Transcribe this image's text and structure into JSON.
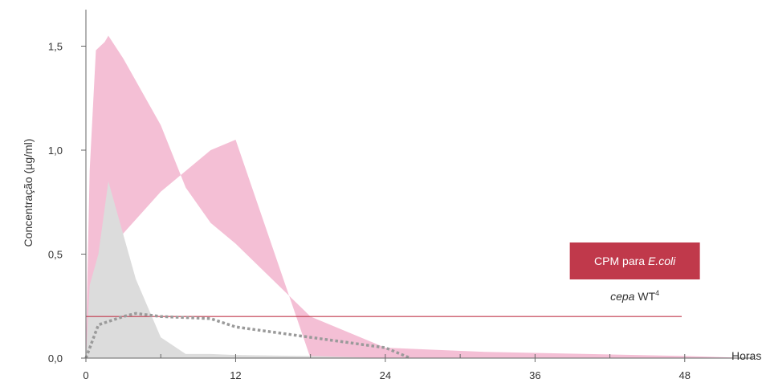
{
  "chart_data": {
    "type": "area",
    "xlabel": "Horas",
    "ylabel": "Concentração (µg/ml)",
    "xlim": [
      0,
      54
    ],
    "ylim": [
      0,
      1.6
    ],
    "x_ticks": [
      0,
      12,
      24,
      36,
      48
    ],
    "x_tick_labels": [
      "0",
      "12",
      "24",
      "36",
      "48"
    ],
    "x_minor_ticks": [
      6,
      18,
      30,
      42
    ],
    "y_ticks": [
      0,
      0.5,
      1.0,
      1.5
    ],
    "y_tick_labels": [
      "0,0",
      "0,5",
      "1,0",
      "1,5"
    ],
    "grid": false,
    "series": [
      {
        "role": "band",
        "color": "#f4bfd5",
        "x": [
          0,
          0.3,
          0.8,
          1.5,
          1.8,
          3,
          6,
          8,
          10,
          12,
          18,
          24,
          32,
          48,
          53.5
        ],
        "y": [
          0.05,
          0.9,
          1.48,
          1.52,
          1.55,
          1.44,
          1.12,
          0.82,
          0.65,
          0.55,
          0.2,
          0.05,
          0.03,
          0.01,
          0
        ],
        "y_lower": [
          0,
          0.25,
          0.3,
          0.45,
          0.48,
          0.6,
          0.8,
          0.9,
          1.0,
          1.05,
          0,
          0,
          0,
          0,
          0
        ]
      },
      {
        "role": "filled",
        "color": "#dcdcdc",
        "x": [
          0,
          0.3,
          1,
          1.8,
          2.5,
          4,
          6,
          8,
          10,
          12,
          18,
          24
        ],
        "y": [
          0,
          0.35,
          0.5,
          0.85,
          0.7,
          0.38,
          0.1,
          0.02,
          0.02,
          0.015,
          0.01,
          0
        ]
      },
      {
        "role": "line",
        "style": "dotted",
        "color": "#9a9a9a",
        "x": [
          0,
          1,
          3,
          4,
          6,
          8,
          10,
          12,
          18,
          24,
          26
        ],
        "y": [
          0,
          0.16,
          0.2,
          0.215,
          0.2,
          0.195,
          0.19,
          0.15,
          0.1,
          0.05,
          0
        ]
      }
    ],
    "hline": {
      "y": 0.2,
      "color": "#c0394b"
    },
    "annotation": {
      "box_color": "#c0394b",
      "prefix": "CPM para ",
      "italic": "E.coli",
      "sub_italic": "cepa",
      "sub_text": " WT",
      "sup": "4",
      "x": 44,
      "y": 0.23
    }
  }
}
